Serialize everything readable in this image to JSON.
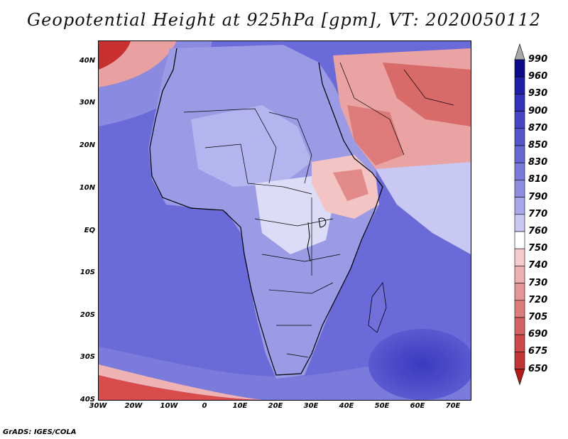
{
  "title": "Geopotential Height at 925hPa [gpm], VT: 2020050112",
  "footer": "GrADS: IGES/COLA",
  "lat_labels": [
    "40N",
    "30N",
    "20N",
    "10N",
    "EQ",
    "10S",
    "20S",
    "30S",
    "40S"
  ],
  "lon_labels": [
    "30W",
    "20W",
    "10W",
    "0",
    "10E",
    "20E",
    "30E",
    "40E",
    "50E",
    "60E",
    "70E"
  ],
  "colorbar": {
    "labels": [
      "990",
      "960",
      "930",
      "900",
      "870",
      "850",
      "830",
      "810",
      "790",
      "770",
      "760",
      "750",
      "740",
      "730",
      "720",
      "705",
      "690",
      "675",
      "650"
    ],
    "colors": [
      "#0a0a8a",
      "#1e1ea8",
      "#3232bb",
      "#4545c5",
      "#5656cc",
      "#6767d3",
      "#7a7ad9",
      "#8e8ee0",
      "#a8a8ea",
      "#c8c8f2",
      "#ffffff",
      "#f5cccc",
      "#eeb0b0",
      "#e59595",
      "#dd7a7a",
      "#d56262",
      "#cc4a4a",
      "#c23535",
      "#b52020"
    ],
    "top_arrow_color": "#a9a9a9",
    "bottom_arrow_color": "#b51a1a"
  }
}
